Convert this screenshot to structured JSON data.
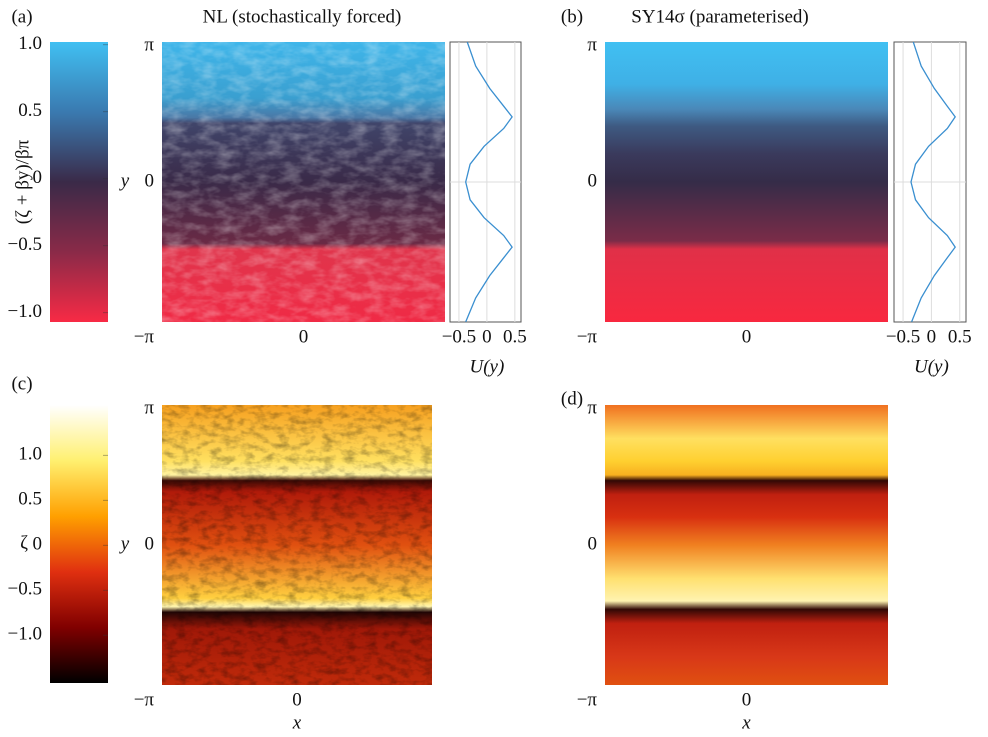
{
  "chart_data": [
    {
      "type": "colorbar",
      "label": "(ζ + βy)/βπ",
      "ylim": [
        -1.07,
        1.02
      ],
      "yticks": [
        {
          "value": 1,
          "label": "1.0"
        },
        0.5,
        0,
        {
          "value": -0.5,
          "label": "−0.5"
        },
        {
          "value": -1,
          "label": "−1.0"
        }
      ]
    },
    {
      "type": "heatmap",
      "panel": "(a)",
      "title": "NL (stochastically forced)",
      "ylabel": "y",
      "xlim": [
        -3.141592653589793,
        3.141592653589793
      ],
      "ylim": [
        -3.141592653589793,
        3.141592653589793
      ],
      "xticks": [
        0
      ],
      "yticks": [
        {
          "value": 3.141592653589793,
          "label": "π"
        },
        0,
        {
          "value": -3.141592653589793,
          "label": "−π"
        }
      ]
    },
    {
      "type": "line",
      "xlabel": "U(y)",
      "xlim": [
        -0.66,
        0.61
      ],
      "ylim": [
        -3.141592653589793,
        3.141592653589793
      ],
      "xticks": [
        {
          "value": -0.5,
          "label": "−0.5"
        },
        0,
        0.5
      ],
      "grid": true,
      "color": "#3a8fd0",
      "y": [
        -3.14,
        -2.6,
        -2.1,
        -1.7,
        -1.46,
        -1.2,
        -0.8,
        -0.4,
        0,
        0.4,
        0.8,
        1.2,
        1.46,
        1.7,
        2.1,
        2.6,
        3.14
      ],
      "values": [
        -0.38,
        -0.2,
        0.05,
        0.3,
        0.45,
        0.3,
        -0.05,
        -0.3,
        -0.38,
        -0.3,
        -0.05,
        0.3,
        0.45,
        0.3,
        0.05,
        -0.2,
        -0.35
      ]
    },
    {
      "type": "heatmap",
      "panel": "(b)",
      "title": "SY14σ (parameterised)",
      "xlim": [
        -3.141592653589793,
        3.141592653589793
      ],
      "ylim": [
        -3.141592653589793,
        3.141592653589793
      ],
      "xticks": [
        0
      ],
      "yticks": [
        {
          "value": 3.141592653589793,
          "label": "π"
        },
        0,
        {
          "value": -3.141592653589793,
          "label": "−π"
        }
      ]
    },
    {
      "type": "line",
      "xlabel": "U(y)",
      "xlim": [
        -0.66,
        0.61
      ],
      "ylim": [
        -3.141592653589793,
        3.141592653589793
      ],
      "xticks": [
        {
          "value": -0.5,
          "label": "−0.5"
        },
        0,
        0.5
      ],
      "grid": true,
      "color": "#3a8fd0",
      "y": [
        -3.14,
        -2.6,
        -2.1,
        -1.7,
        -1.46,
        -1.2,
        -0.8,
        -0.4,
        0,
        0.4,
        0.8,
        1.2,
        1.46,
        1.7,
        2.1,
        2.6,
        3.14
      ],
      "values": [
        -0.35,
        -0.18,
        0.05,
        0.28,
        0.42,
        0.28,
        -0.05,
        -0.28,
        -0.36,
        -0.28,
        -0.05,
        0.28,
        0.42,
        0.28,
        0.05,
        -0.18,
        -0.32
      ]
    },
    {
      "type": "colorbar",
      "label": "ζ",
      "ylim": [
        -1.53,
        1.56
      ],
      "yticks": [
        {
          "value": 1,
          "label": "1.0"
        },
        0.5,
        0,
        {
          "value": -0.5,
          "label": "−0.5"
        },
        {
          "value": -1,
          "label": "−1.0"
        }
      ]
    },
    {
      "type": "heatmap",
      "panel": "(c)",
      "ylabel": "y",
      "xlabel": "x",
      "xlim": [
        -3.141592653589793,
        3.141592653589793
      ],
      "ylim": [
        -3.141592653589793,
        3.141592653589793
      ],
      "xticks": [
        0
      ],
      "yticks": [
        {
          "value": 3.141592653589793,
          "label": "π"
        },
        0,
        {
          "value": -3.141592653589793,
          "label": "−π"
        }
      ]
    },
    {
      "type": "heatmap",
      "panel": "(d)",
      "xlabel": "x",
      "xlim": [
        -3.141592653589793,
        3.141592653589793
      ],
      "ylim": [
        -3.141592653589793,
        3.141592653589793
      ],
      "xticks": [
        0
      ],
      "yticks": [
        {
          "value": 3.141592653589793,
          "label": "π"
        },
        0,
        {
          "value": -3.141592653589793,
          "label": "−π"
        }
      ]
    }
  ]
}
